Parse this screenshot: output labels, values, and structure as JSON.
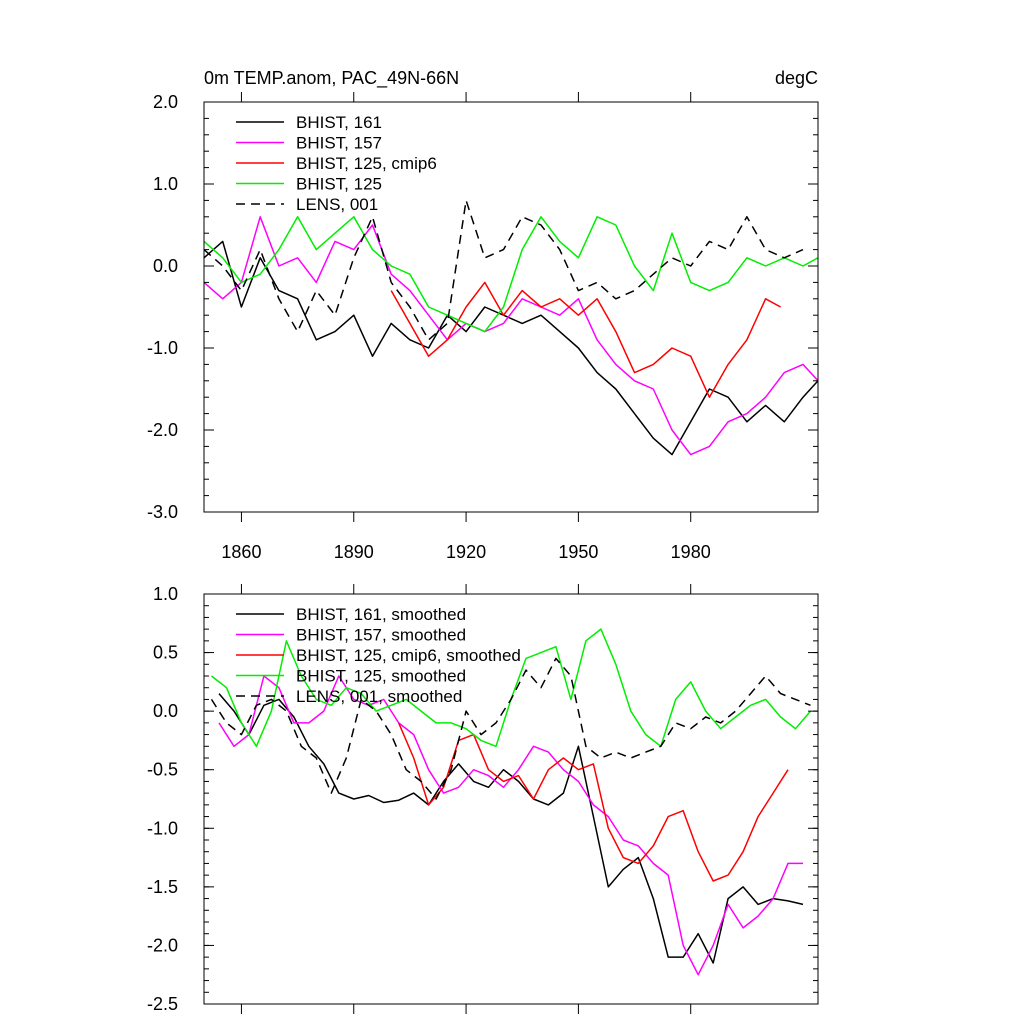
{
  "chart_data": [
    {
      "type": "line",
      "title": "0m TEMP.anom, PAC_49N-66N",
      "units": "degC",
      "ylim": [
        -3.0,
        2.0
      ],
      "xlim": [
        1850,
        2014
      ],
      "x_ticks": [
        1860,
        1890,
        1920,
        1950,
        1980
      ],
      "y_ticks": [
        "2.0",
        "1.0",
        "0.0",
        "-1.0",
        "-2.0",
        "-3.0"
      ],
      "y_tick_values": [
        2.0,
        1.0,
        0.0,
        -1.0,
        -2.0,
        -3.0
      ],
      "legend_position": "top-left",
      "series": [
        {
          "name": "BHIST, 161",
          "color": "#000000",
          "dashed": false,
          "x": [
            1850,
            1855,
            1860,
            1865,
            1870,
            1875,
            1880,
            1885,
            1890,
            1895,
            1900,
            1905,
            1910,
            1915,
            1920,
            1925,
            1930,
            1935,
            1940,
            1945,
            1950,
            1955,
            1960,
            1965,
            1970,
            1975,
            1980,
            1985,
            1990,
            1995,
            2000,
            2005,
            2010,
            2014
          ],
          "y": [
            0.1,
            0.3,
            -0.5,
            0.1,
            -0.3,
            -0.4,
            -0.9,
            -0.8,
            -0.6,
            -1.1,
            -0.7,
            -0.9,
            -1.0,
            -0.6,
            -0.8,
            -0.5,
            -0.6,
            -0.7,
            -0.6,
            -0.8,
            -1.0,
            -1.3,
            -1.5,
            -1.8,
            -2.1,
            -2.3,
            -1.9,
            -1.5,
            -1.6,
            -1.9,
            -1.7,
            -1.9,
            -1.6,
            -1.4
          ]
        },
        {
          "name": "BHIST, 157",
          "color": "#ff00ff",
          "dashed": false,
          "x": [
            1850,
            1855,
            1860,
            1865,
            1870,
            1875,
            1880,
            1885,
            1890,
            1895,
            1900,
            1905,
            1910,
            1915,
            1920,
            1925,
            1930,
            1935,
            1940,
            1945,
            1950,
            1955,
            1960,
            1965,
            1970,
            1975,
            1980,
            1985,
            1990,
            1995,
            2000,
            2005,
            2010,
            2014
          ],
          "y": [
            -0.2,
            -0.4,
            -0.2,
            0.6,
            0.0,
            0.1,
            -0.2,
            0.3,
            0.2,
            0.5,
            -0.1,
            -0.3,
            -0.6,
            -0.9,
            -0.7,
            -0.8,
            -0.7,
            -0.4,
            -0.5,
            -0.6,
            -0.4,
            -0.9,
            -1.2,
            -1.4,
            -1.5,
            -2.0,
            -2.3,
            -2.2,
            -1.9,
            -1.8,
            -1.6,
            -1.3,
            -1.2,
            -1.4
          ]
        },
        {
          "name": "BHIST, 125, cmip6",
          "color": "#ff0000",
          "dashed": false,
          "x": [
            1900,
            1905,
            1910,
            1915,
            1920,
            1925,
            1930,
            1935,
            1940,
            1945,
            1950,
            1955,
            1960,
            1965,
            1970,
            1975,
            1980,
            1985,
            1990,
            1995,
            2000,
            2004
          ],
          "y": [
            -0.3,
            -0.7,
            -1.1,
            -0.9,
            -0.5,
            -0.2,
            -0.6,
            -0.3,
            -0.5,
            -0.4,
            -0.6,
            -0.4,
            -0.8,
            -1.3,
            -1.2,
            -1.0,
            -1.1,
            -1.6,
            -1.2,
            -0.9,
            -0.4,
            -0.5
          ]
        },
        {
          "name": "BHIST, 125",
          "color": "#00ee00",
          "dashed": false,
          "x": [
            1850,
            1855,
            1860,
            1865,
            1870,
            1875,
            1880,
            1885,
            1890,
            1895,
            1900,
            1905,
            1910,
            1915,
            1920,
            1925,
            1930,
            1935,
            1940,
            1945,
            1950,
            1955,
            1960,
            1965,
            1970,
            1975,
            1980,
            1985,
            1990,
            1995,
            2000,
            2005,
            2010,
            2014
          ],
          "y": [
            0.3,
            0.1,
            -0.2,
            -0.1,
            0.2,
            0.6,
            0.2,
            0.4,
            0.6,
            0.2,
            0.0,
            -0.1,
            -0.5,
            -0.6,
            -0.7,
            -0.8,
            -0.5,
            0.2,
            0.6,
            0.3,
            0.1,
            0.6,
            0.5,
            0.0,
            -0.3,
            0.4,
            -0.2,
            -0.3,
            -0.2,
            0.1,
            0.0,
            0.1,
            0.0,
            0.1
          ]
        },
        {
          "name": "LENS, 001",
          "color": "#000000",
          "dashed": true,
          "x": [
            1850,
            1855,
            1860,
            1865,
            1870,
            1875,
            1880,
            1885,
            1890,
            1895,
            1900,
            1905,
            1910,
            1915,
            1920,
            1925,
            1930,
            1935,
            1940,
            1945,
            1950,
            1955,
            1960,
            1965,
            1970,
            1975,
            1980,
            1985,
            1990,
            1995,
            2000,
            2005,
            2010
          ],
          "y": [
            0.2,
            0.0,
            -0.3,
            0.2,
            -0.4,
            -0.8,
            -0.3,
            -0.6,
            0.1,
            0.6,
            -0.2,
            -0.5,
            -0.9,
            -0.7,
            0.8,
            0.1,
            0.2,
            0.6,
            0.5,
            0.2,
            -0.3,
            -0.2,
            -0.4,
            -0.3,
            -0.1,
            0.1,
            0.0,
            0.3,
            0.2,
            0.6,
            0.2,
            0.1,
            0.2
          ]
        }
      ]
    },
    {
      "type": "line",
      "ylim": [
        -2.5,
        1.0
      ],
      "xlim": [
        1850,
        2014
      ],
      "y_ticks": [
        "1.0",
        "0.5",
        "0.0",
        "-0.5",
        "-1.0",
        "-1.5",
        "-2.0",
        "-2.5"
      ],
      "y_tick_values": [
        1.0,
        0.5,
        0.0,
        -0.5,
        -1.0,
        -1.5,
        -2.0,
        -2.5
      ],
      "legend_position": "top-left",
      "series": [
        {
          "name": "BHIST, 161, smoothed",
          "color": "#000000",
          "dashed": false,
          "x": [
            1854,
            1858,
            1862,
            1866,
            1870,
            1874,
            1878,
            1882,
            1886,
            1890,
            1894,
            1898,
            1902,
            1906,
            1910,
            1914,
            1918,
            1922,
            1926,
            1930,
            1934,
            1938,
            1942,
            1946,
            1950,
            1954,
            1958,
            1962,
            1966,
            1970,
            1974,
            1978,
            1982,
            1986,
            1990,
            1994,
            1998,
            2002,
            2006,
            2010
          ],
          "y": [
            0.15,
            0.0,
            -0.2,
            0.05,
            0.1,
            -0.05,
            -0.3,
            -0.45,
            -0.7,
            -0.75,
            -0.72,
            -0.78,
            -0.76,
            -0.7,
            -0.8,
            -0.6,
            -0.45,
            -0.6,
            -0.65,
            -0.5,
            -0.6,
            -0.75,
            -0.8,
            -0.7,
            -0.3,
            -0.9,
            -1.5,
            -1.35,
            -1.25,
            -1.6,
            -2.1,
            -2.1,
            -1.9,
            -2.15,
            -1.6,
            -1.5,
            -1.65,
            -1.6,
            -1.62,
            -1.65
          ]
        },
        {
          "name": "BHIST, 157, smoothed",
          "color": "#ff00ff",
          "dashed": false,
          "x": [
            1854,
            1858,
            1862,
            1866,
            1870,
            1874,
            1878,
            1882,
            1886,
            1890,
            1894,
            1898,
            1902,
            1906,
            1910,
            1914,
            1918,
            1922,
            1926,
            1930,
            1934,
            1938,
            1942,
            1946,
            1950,
            1954,
            1958,
            1962,
            1966,
            1970,
            1974,
            1978,
            1982,
            1986,
            1990,
            1994,
            1998,
            2002,
            2006,
            2010
          ],
          "y": [
            -0.1,
            -0.3,
            -0.2,
            0.3,
            0.2,
            -0.1,
            -0.1,
            0.0,
            0.3,
            0.1,
            0.05,
            0.1,
            -0.1,
            -0.2,
            -0.5,
            -0.7,
            -0.65,
            -0.5,
            -0.55,
            -0.65,
            -0.5,
            -0.3,
            -0.35,
            -0.5,
            -0.6,
            -0.8,
            -0.9,
            -1.1,
            -1.15,
            -1.3,
            -1.4,
            -2.0,
            -2.25,
            -2.0,
            -1.65,
            -1.85,
            -1.75,
            -1.6,
            -1.3,
            -1.3
          ]
        },
        {
          "name": "BHIST, 125, cmip6, smoothed",
          "color": "#ff0000",
          "dashed": false,
          "x": [
            1902,
            1906,
            1910,
            1914,
            1918,
            1922,
            1926,
            1930,
            1934,
            1938,
            1942,
            1946,
            1950,
            1954,
            1958,
            1962,
            1966,
            1970,
            1974,
            1978,
            1982,
            1986,
            1990,
            1994,
            1998,
            2002,
            2006
          ],
          "y": [
            -0.1,
            -0.4,
            -0.8,
            -0.65,
            -0.25,
            -0.2,
            -0.5,
            -0.6,
            -0.55,
            -0.75,
            -0.5,
            -0.4,
            -0.5,
            -0.45,
            -1.0,
            -1.25,
            -1.3,
            -1.15,
            -0.9,
            -0.85,
            -1.2,
            -1.45,
            -1.4,
            -1.2,
            -0.9,
            -0.7,
            -0.5
          ]
        },
        {
          "name": "BHIST, 125, smoothed",
          "color": "#00ee00",
          "dashed": false,
          "x": [
            1852,
            1856,
            1860,
            1864,
            1868,
            1872,
            1876,
            1880,
            1884,
            1888,
            1892,
            1896,
            1900,
            1904,
            1908,
            1912,
            1916,
            1920,
            1924,
            1928,
            1932,
            1936,
            1940,
            1944,
            1948,
            1952,
            1956,
            1960,
            1964,
            1968,
            1972,
            1976,
            1980,
            1984,
            1988,
            1992,
            1996,
            2000,
            2004,
            2008,
            2012
          ],
          "y": [
            0.3,
            0.2,
            -0.1,
            -0.3,
            0.0,
            0.6,
            0.3,
            0.1,
            0.05,
            0.2,
            0.15,
            0.0,
            0.05,
            0.1,
            0.0,
            -0.1,
            -0.1,
            -0.15,
            -0.25,
            -0.3,
            0.1,
            0.45,
            0.5,
            0.55,
            0.1,
            0.6,
            0.7,
            0.4,
            0.0,
            -0.2,
            -0.3,
            0.1,
            0.25,
            0.0,
            -0.15,
            -0.05,
            0.05,
            0.1,
            -0.05,
            -0.15,
            0.0
          ]
        },
        {
          "name": "LENS, 001, smoothed",
          "color": "#000000",
          "dashed": true,
          "x": [
            1852,
            1856,
            1860,
            1864,
            1868,
            1872,
            1876,
            1880,
            1884,
            1888,
            1892,
            1896,
            1900,
            1904,
            1908,
            1912,
            1916,
            1920,
            1924,
            1928,
            1932,
            1936,
            1940,
            1944,
            1948,
            1952,
            1956,
            1960,
            1964,
            1968,
            1972,
            1976,
            1980,
            1984,
            1988,
            1992,
            1996,
            2000,
            2004,
            2008,
            2012
          ],
          "y": [
            0.1,
            -0.1,
            -0.2,
            0.05,
            0.1,
            0.0,
            -0.3,
            -0.4,
            -0.7,
            -0.4,
            0.1,
            0.0,
            -0.2,
            -0.5,
            -0.6,
            -0.75,
            -0.5,
            0.0,
            -0.2,
            -0.1,
            0.1,
            0.35,
            0.2,
            0.45,
            0.3,
            -0.3,
            -0.4,
            -0.35,
            -0.4,
            -0.35,
            -0.3,
            -0.1,
            -0.15,
            -0.05,
            -0.1,
            0.0,
            0.15,
            0.3,
            0.15,
            0.1,
            0.05
          ]
        }
      ]
    }
  ]
}
